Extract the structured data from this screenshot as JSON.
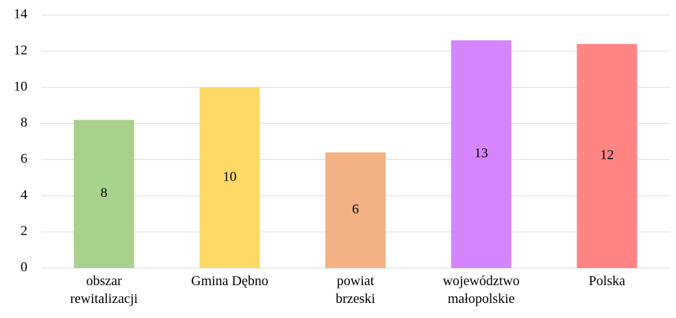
{
  "chart_data": {
    "type": "bar",
    "categories": [
      "obszar\nrewitalizacji",
      "Gmina Dębno",
      "powiat\nbrzeski",
      "województwo\nmałopolskie",
      "Polska"
    ],
    "values": [
      8.2,
      10.0,
      6.4,
      12.6,
      12.4
    ],
    "value_labels": [
      "8",
      "10",
      "6",
      "13",
      "12"
    ],
    "colors": [
      "#a9d18e",
      "#ffd966",
      "#f4b183",
      "#d586ff",
      "#ff8585"
    ],
    "ylim": [
      0,
      14
    ],
    "yticks": [
      0,
      2,
      4,
      6,
      8,
      10,
      12,
      14
    ],
    "grid": true
  }
}
